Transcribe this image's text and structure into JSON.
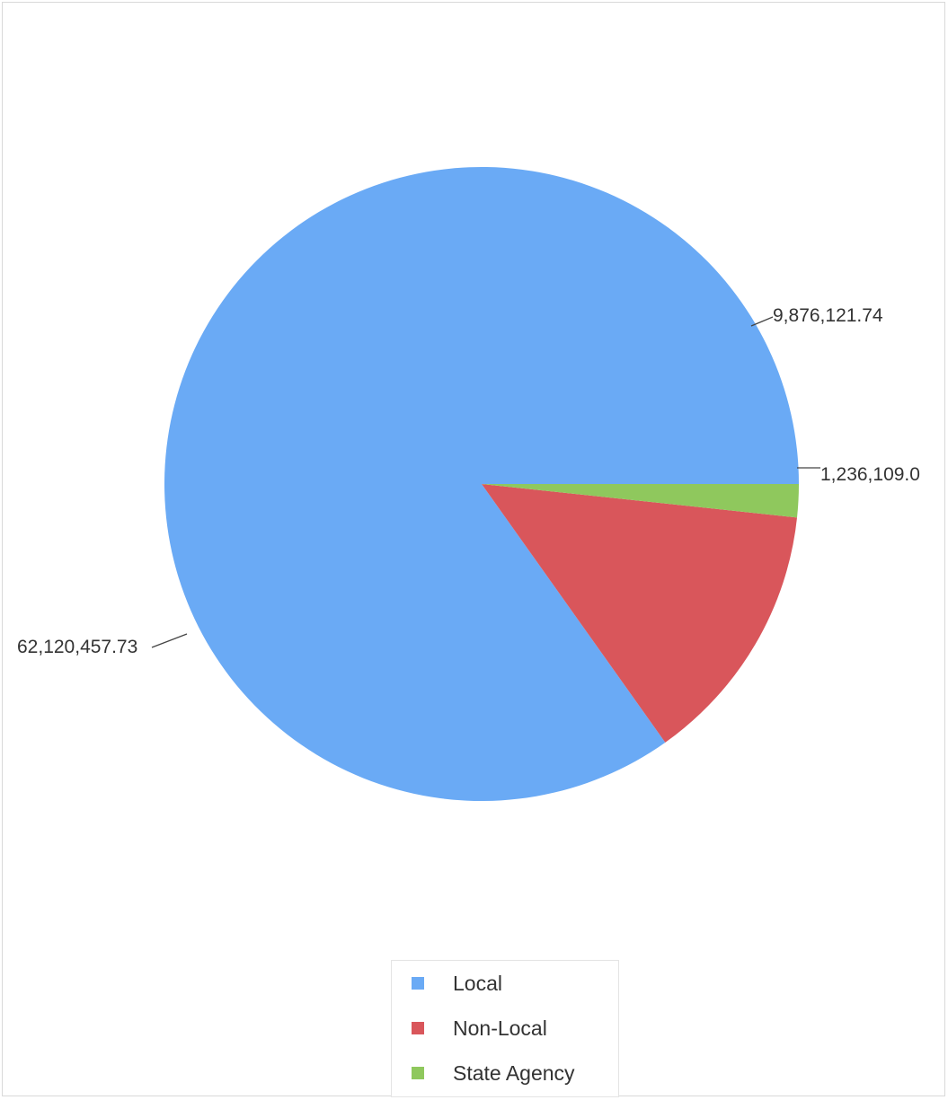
{
  "chart_data": {
    "type": "pie",
    "title": "",
    "legend_position": "bottom",
    "slices": [
      {
        "label": "Local",
        "value": 62120457.73,
        "value_label": "62,120,457.73",
        "color": "#6aaaf5"
      },
      {
        "label": "Non-Local",
        "value": 9876121.74,
        "value_label": "9,876,121.74",
        "color": "#d9565b"
      },
      {
        "label": "State Agency",
        "value": 1236109.0,
        "value_label": "1,236,109.0",
        "color": "#8fc85d"
      }
    ]
  }
}
